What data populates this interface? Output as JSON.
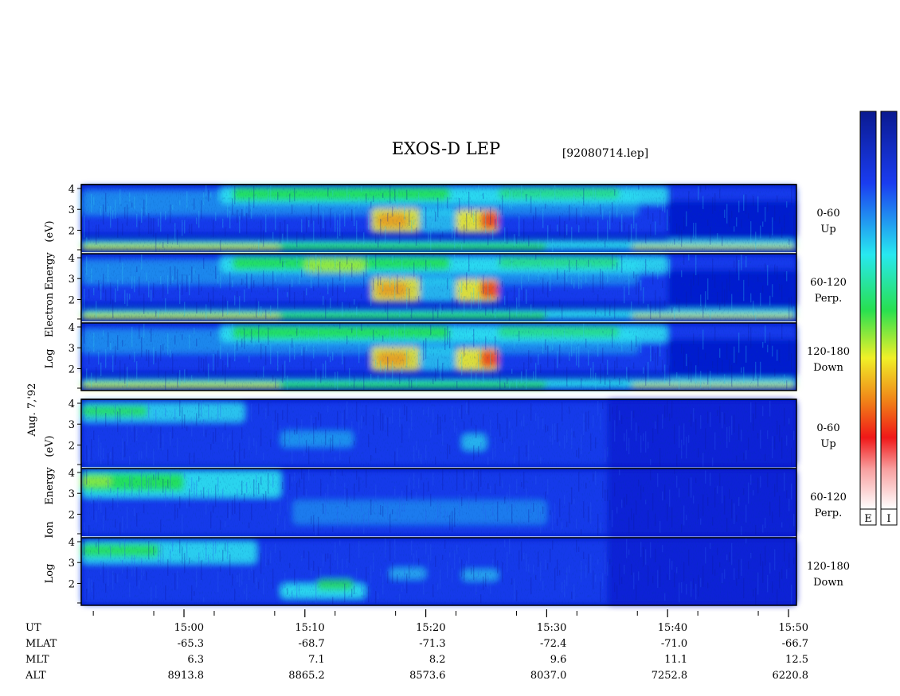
{
  "title": "EXOS-D LEP",
  "file_id": "[92080714.lep]",
  "date_label": "Aug. 7,'92",
  "colorbar_labels": [
    "E",
    "I"
  ],
  "chart_data": {
    "type": "heatmap",
    "x_axis": {
      "ticks": [
        {
          "time": "15:00",
          "mlat": "-65.3",
          "mlt": "6.3",
          "alt": "8913.8"
        },
        {
          "time": "15:10",
          "mlat": "-68.7",
          "mlt": "7.1",
          "alt": "8865.2"
        },
        {
          "time": "15:20",
          "mlat": "-71.3",
          "mlt": "8.2",
          "alt": "8573.6"
        },
        {
          "time": "15:30",
          "mlat": "-72.4",
          "mlt": "9.6",
          "alt": "8037.0"
        },
        {
          "time": "15:40",
          "mlat": "-71.0",
          "mlt": "11.1",
          "alt": "7252.8"
        },
        {
          "time": "15:50",
          "mlat": "-66.7",
          "mlt": "12.5",
          "alt": "6220.8"
        }
      ],
      "row_labels": [
        "UT",
        "MLAT",
        "MLT",
        "ALT"
      ]
    },
    "y_ticks": [
      "4",
      "3",
      "2"
    ],
    "groups": [
      {
        "ylabel_words": [
          "Log",
          "Electron",
          "Energy",
          "(eV)"
        ],
        "species": "electron"
      },
      {
        "ylabel_words": [
          "Log",
          "Ion",
          "Energy",
          "(eV)"
        ],
        "species": "ion"
      }
    ],
    "panels": [
      {
        "group": 0,
        "angle": "0-60",
        "direction": "Up"
      },
      {
        "group": 0,
        "angle": "60-120",
        "direction": "Perp."
      },
      {
        "group": 0,
        "angle": "120-180",
        "direction": "Down"
      },
      {
        "group": 1,
        "angle": "0-60",
        "direction": "Up"
      },
      {
        "group": 1,
        "angle": "60-120",
        "direction": "Perp."
      },
      {
        "group": 1,
        "angle": "120-180",
        "direction": "Down"
      }
    ]
  },
  "colors": {
    "background": "#ffffff",
    "deep_blue": "#0018c8",
    "blue": "#1b3ef0",
    "cyan": "#2ee6f0",
    "green": "#24e050",
    "yellow": "#f0f028",
    "red": "#f01818"
  }
}
